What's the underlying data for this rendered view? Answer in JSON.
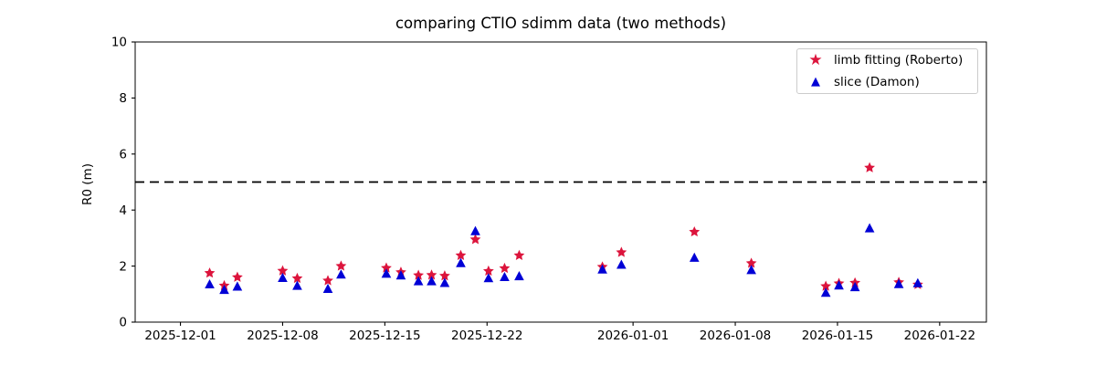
{
  "chart_data": {
    "type": "scatter",
    "title": "comparing CTIO sdimm data (two methods)",
    "ylabel": "R0 (m)",
    "ylim": [
      0,
      10
    ],
    "yticks": [
      0,
      2,
      4,
      6,
      8,
      10
    ],
    "x_axis": {
      "unit": "days since 2025-12-01",
      "xlim": [
        -3.1,
        55.2
      ],
      "ticks": [
        {
          "d": 0,
          "label": "2025-12-01"
        },
        {
          "d": 7,
          "label": "2025-12-08"
        },
        {
          "d": 14,
          "label": "2025-12-15"
        },
        {
          "d": 21,
          "label": "2025-12-22"
        },
        {
          "d": 31,
          "label": "2026-01-01"
        },
        {
          "d": 38,
          "label": "2026-01-08"
        },
        {
          "d": 45,
          "label": "2026-01-15"
        },
        {
          "d": 52,
          "label": "2026-01-22"
        }
      ]
    },
    "reference_line": {
      "y": 5,
      "style": "dashed",
      "color": "#000000"
    },
    "legend": {
      "position": "upper right"
    },
    "grid": false,
    "series": [
      {
        "name": "limb fitting (Roberto)",
        "marker": "star",
        "glyph": "★",
        "color": "#dc143c",
        "points": [
          [
            2.0,
            1.75
          ],
          [
            3.0,
            1.3
          ],
          [
            3.9,
            1.6
          ],
          [
            7.0,
            1.83
          ],
          [
            8.0,
            1.56
          ],
          [
            10.1,
            1.48
          ],
          [
            11.0,
            2.0
          ],
          [
            14.1,
            1.93
          ],
          [
            15.1,
            1.78
          ],
          [
            16.3,
            1.67
          ],
          [
            17.2,
            1.68
          ],
          [
            18.1,
            1.65
          ],
          [
            19.2,
            2.38
          ],
          [
            20.2,
            2.95
          ],
          [
            21.1,
            1.82
          ],
          [
            22.2,
            1.92
          ],
          [
            23.2,
            2.38
          ],
          [
            28.9,
            1.97
          ],
          [
            30.2,
            2.49
          ],
          [
            35.2,
            3.22
          ],
          [
            39.1,
            2.1
          ],
          [
            44.2,
            1.28
          ],
          [
            45.1,
            1.38
          ],
          [
            46.2,
            1.4
          ],
          [
            47.2,
            5.51
          ],
          [
            49.2,
            1.42
          ],
          [
            50.5,
            1.34
          ]
        ]
      },
      {
        "name": "slice (Damon)",
        "marker": "triangle_up",
        "glyph": "▲",
        "color": "#0000d6",
        "points": [
          [
            2.0,
            1.35
          ],
          [
            3.0,
            1.15
          ],
          [
            3.9,
            1.27
          ],
          [
            7.0,
            1.58
          ],
          [
            8.0,
            1.3
          ],
          [
            10.1,
            1.19
          ],
          [
            11.0,
            1.7
          ],
          [
            14.1,
            1.73
          ],
          [
            15.1,
            1.67
          ],
          [
            16.3,
            1.46
          ],
          [
            17.2,
            1.46
          ],
          [
            18.1,
            1.4
          ],
          [
            19.2,
            2.11
          ],
          [
            20.2,
            3.25
          ],
          [
            21.1,
            1.57
          ],
          [
            22.2,
            1.61
          ],
          [
            23.2,
            1.64
          ],
          [
            28.9,
            1.88
          ],
          [
            30.2,
            2.05
          ],
          [
            35.2,
            2.3
          ],
          [
            39.1,
            1.86
          ],
          [
            44.2,
            1.05
          ],
          [
            45.1,
            1.31
          ],
          [
            46.2,
            1.25
          ],
          [
            47.2,
            3.35
          ],
          [
            49.2,
            1.36
          ],
          [
            50.5,
            1.39
          ]
        ]
      }
    ]
  }
}
